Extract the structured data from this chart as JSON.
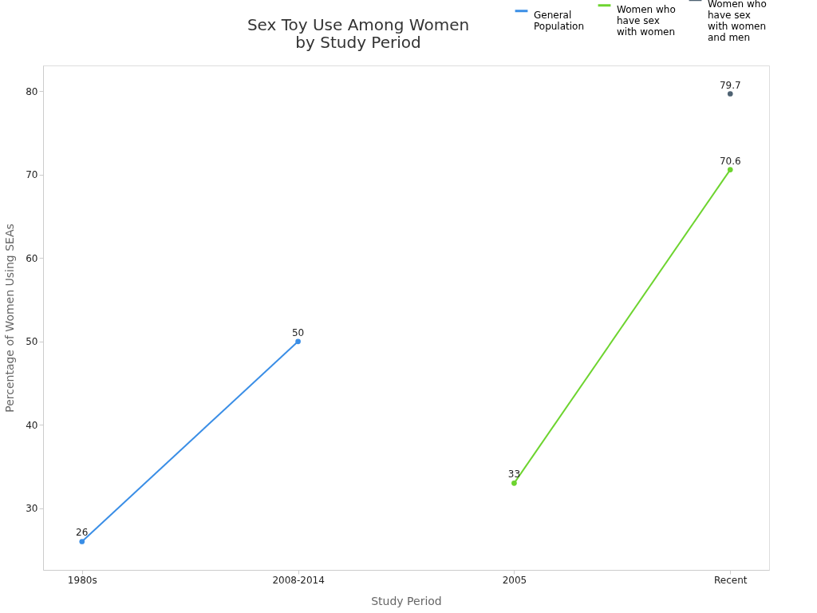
{
  "chart_data": {
    "type": "line",
    "title": "Sex Toy Use Among Women by Study Period",
    "xlabel": "Study Period",
    "ylabel": "Percentage of Women Using SEAs",
    "categories": [
      "1980s",
      "2008-2014",
      "2005",
      "Recent"
    ],
    "series": [
      {
        "name": "General Population",
        "color": "#3a8ee6",
        "values": [
          26,
          50,
          null,
          null
        ]
      },
      {
        "name": "Women who have sex with women",
        "color": "#6dd42f",
        "values": [
          null,
          null,
          33,
          70.6
        ]
      },
      {
        "name": "Women who have sex with women and men",
        "color": "#4e6272",
        "values": [
          null,
          null,
          null,
          79.7
        ]
      }
    ],
    "ylim": [
      22.6,
      83.1
    ],
    "yticks": [
      30,
      40,
      50,
      60,
      70,
      80
    ],
    "data_labels": true,
    "legend": "top right",
    "marker": "circle",
    "line_style": "solid"
  }
}
